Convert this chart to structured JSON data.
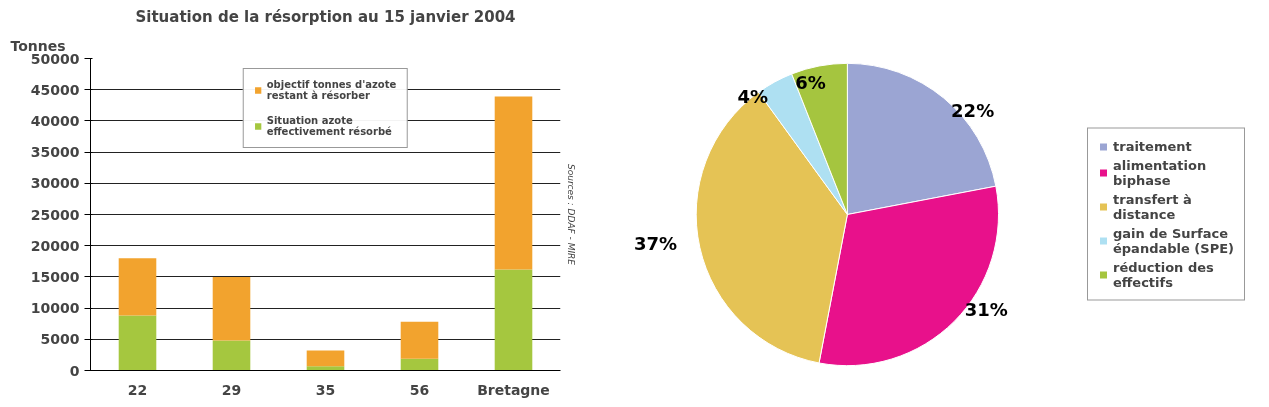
{
  "chart_data": [
    {
      "type": "bar",
      "title": "Situation de la résorption au 15 janvier 2004",
      "ylabel": "Tonnes",
      "categories": [
        "22",
        "29",
        "35",
        "56",
        "Bretagne"
      ],
      "stacked": true,
      "series": [
        {
          "name": "Situation azote effectivement résorbé",
          "color": "#a5c73f",
          "values": [
            8800,
            4800,
            700,
            1900,
            16200
          ]
        },
        {
          "name": "objectif tonnes d'azote restant à résorber",
          "color": "#f2a32e",
          "values": [
            9200,
            10200,
            2500,
            5900,
            27700
          ]
        }
      ],
      "ylim": [
        0,
        50000
      ],
      "yticks": [
        0,
        5000,
        10000,
        15000,
        20000,
        25000,
        30000,
        35000,
        40000,
        45000,
        50000
      ],
      "grid": "y",
      "legend": "top",
      "annotations": [
        "Sources : DDAF - MIRE"
      ]
    },
    {
      "type": "pie",
      "categories": [
        "traitement",
        "alimentation biphase",
        "transfert à distance",
        "gain de Surface épandable (SPE)",
        "réduction des effectifs"
      ],
      "values": [
        22,
        31,
        37,
        4,
        6
      ],
      "colors": [
        "#9ba5d3",
        "#e8118b",
        "#e5c355",
        "#aee0f2",
        "#a5c53f"
      ],
      "value_labels": [
        "22%",
        "31%",
        "37%",
        "4%",
        "6%"
      ],
      "legend": "right"
    }
  ]
}
